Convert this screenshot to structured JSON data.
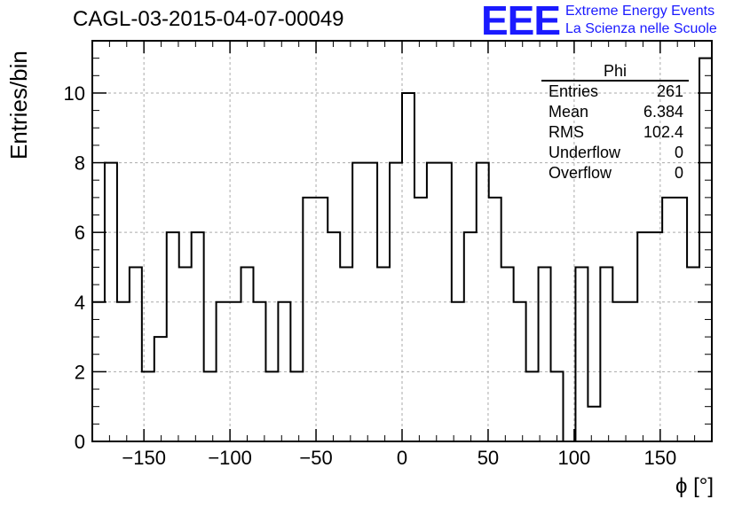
{
  "title": "CAGL-03-2015-04-07-00049",
  "logo": {
    "mark": "EEE",
    "line1": "Extreme Energy Events",
    "line2": "La Scienza nelle Scuole",
    "color": "#1a1aff"
  },
  "stats_box": {
    "name": "Phi",
    "rows": [
      {
        "label": "Entries",
        "value": "261"
      },
      {
        "label": "Mean",
        "value": "6.384"
      },
      {
        "label": "RMS",
        "value": "102.4"
      },
      {
        "label": "Underflow",
        "value": "0"
      },
      {
        "label": "Overflow",
        "value": "0"
      }
    ]
  },
  "chart_data": {
    "type": "histogram",
    "title": "CAGL-03-2015-04-07-00049",
    "xlabel": "ϕ [°]",
    "ylabel": "Entries/bin",
    "xlim": [
      -180,
      180
    ],
    "ylim": [
      0,
      11.5
    ],
    "bin_width": 7.2,
    "x_ticks": [
      -150,
      -100,
      -50,
      0,
      50,
      100,
      150
    ],
    "x_tick_labels": [
      "−150",
      "−100",
      "−50",
      "0",
      "50",
      "100",
      "150"
    ],
    "y_ticks": [
      0,
      2,
      4,
      6,
      8,
      10
    ],
    "y_tick_labels": [
      "0",
      "2",
      "4",
      "6",
      "8",
      "10"
    ],
    "grid": true,
    "values": [
      4,
      8,
      4,
      5,
      2,
      3,
      6,
      5,
      6,
      2,
      4,
      4,
      5,
      4,
      2,
      4,
      2,
      7,
      7,
      6,
      5,
      8,
      8,
      5,
      8,
      10,
      7,
      8,
      8,
      4,
      6,
      8,
      7,
      5,
      4,
      2,
      5,
      2,
      0,
      5,
      1,
      5,
      4,
      4,
      6,
      6,
      7,
      7,
      5,
      11
    ],
    "line_color": "#000000",
    "grid_color": "#aaaaaa"
  },
  "axis": {
    "ylabel": "Entries/bin",
    "xlabel": "ϕ [°]"
  }
}
